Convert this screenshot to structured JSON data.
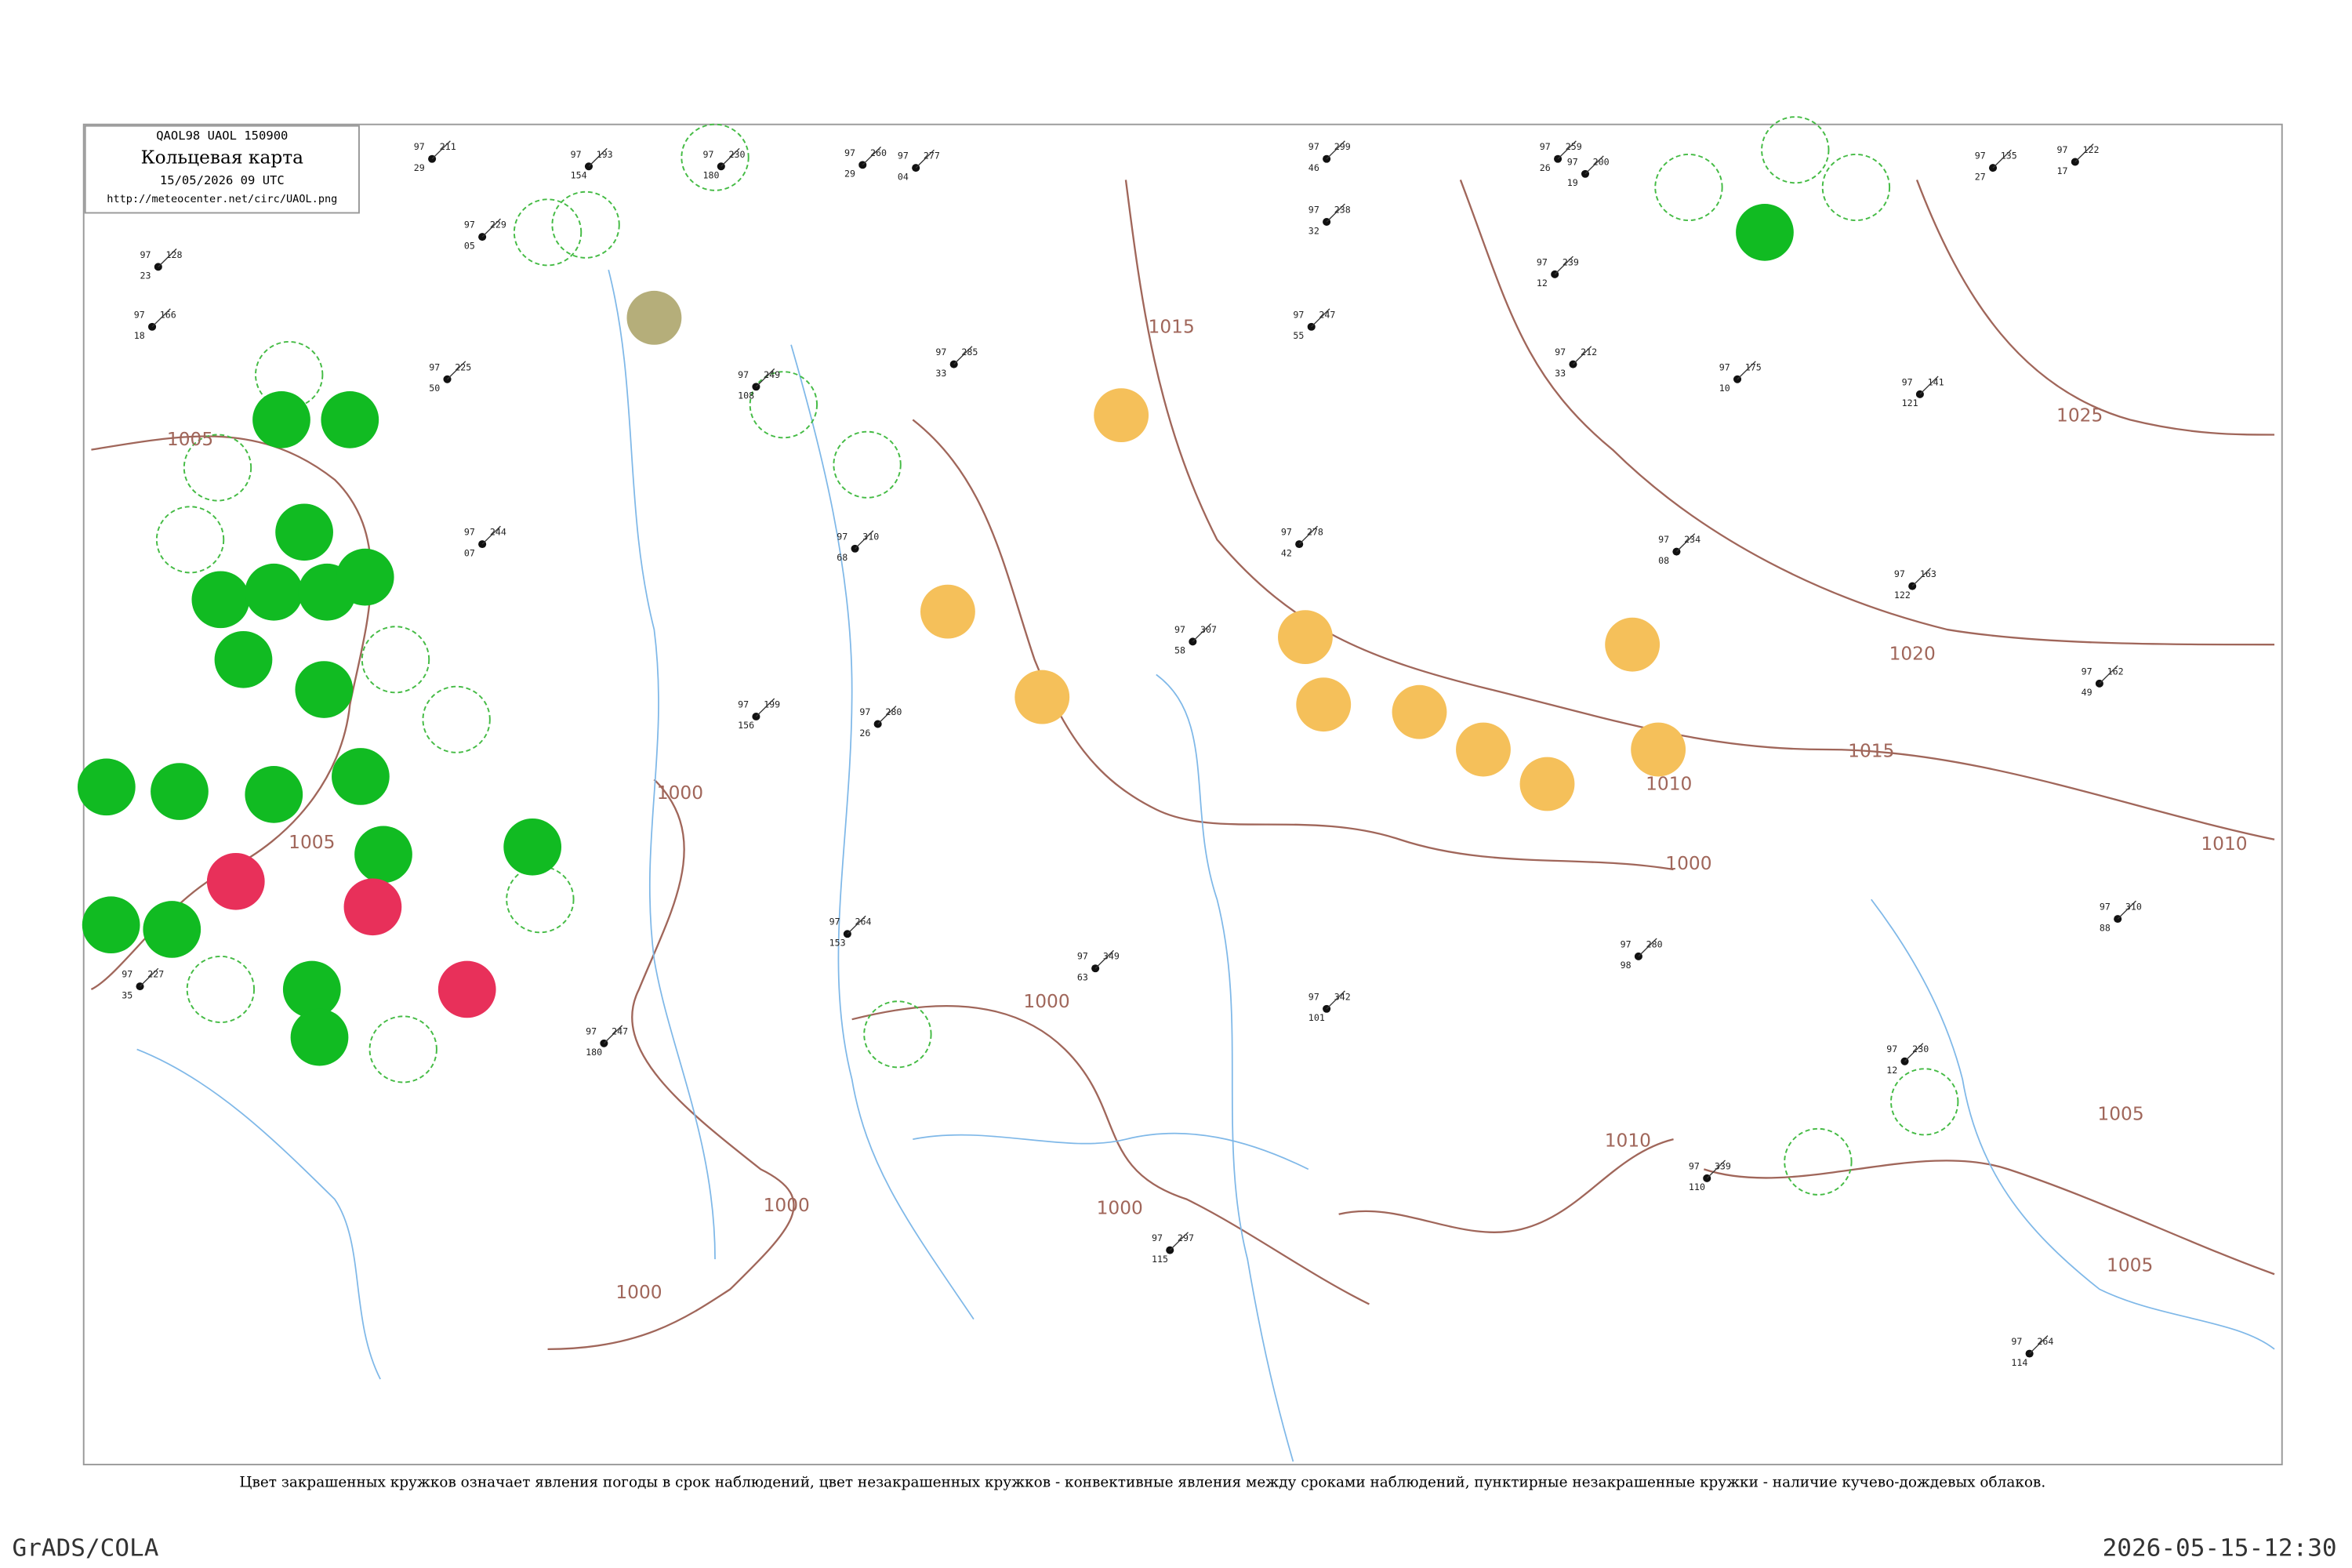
{
  "header": {
    "code": "QAOL98  UAOL  150900",
    "title": "Кольцевая карта",
    "date": "15/05/2026 09 UTC",
    "url": "http://meteocenter.net/circ/UAOL.png"
  },
  "caption": "Цвет закрашенных кружков означает явления погоды в срок наблюдений, цвет незакрашенных кружков - конвективные явления между сроками наблюдений, пунктирные незакрашенные кружки - наличие кучево-дождевых облаков.",
  "footer": {
    "left": "GrADS/COLA",
    "right": "2026-05-15-12:30"
  },
  "isobar_labels": [
    "1005",
    "1005",
    "1000",
    "1015",
    "1000",
    "1000",
    "1000",
    "1000",
    "1010",
    "1020",
    "1015",
    "1010",
    "1025",
    "1005",
    "1005",
    "1010",
    "1000"
  ],
  "stations": [
    {
      "pressure": "211",
      "temperature": "97",
      "dewpoint": "29"
    },
    {
      "pressure": "229",
      "temperature": "97",
      "dewpoint": "05"
    },
    {
      "pressure": "193",
      "temperature": "97",
      "dewpoint": "154"
    },
    {
      "pressure": "230",
      "temperature": "97",
      "dewpoint": "180"
    },
    {
      "pressure": "260",
      "temperature": "97",
      "dewpoint": "29"
    },
    {
      "pressure": "277",
      "temperature": "97",
      "dewpoint": "04"
    },
    {
      "pressure": "299",
      "temperature": "97",
      "dewpoint": "46"
    },
    {
      "pressure": "238",
      "temperature": "97",
      "dewpoint": "32"
    },
    {
      "pressure": "259",
      "temperature": "97",
      "dewpoint": "26"
    },
    {
      "pressure": "200",
      "temperature": "97",
      "dewpoint": "19"
    },
    {
      "pressure": "135",
      "temperature": "97",
      "dewpoint": "27"
    },
    {
      "pressure": "122",
      "temperature": "97",
      "dewpoint": "17"
    },
    {
      "pressure": "128",
      "temperature": "97",
      "dewpoint": "23"
    },
    {
      "pressure": "166",
      "temperature": "97",
      "dewpoint": "18"
    },
    {
      "pressure": "225",
      "temperature": "97",
      "dewpoint": "50"
    },
    {
      "pressure": "249",
      "temperature": "97",
      "dewpoint": "108"
    },
    {
      "pressure": "285",
      "temperature": "97",
      "dewpoint": "33"
    },
    {
      "pressure": "247",
      "temperature": "97",
      "dewpoint": "55"
    },
    {
      "pressure": "239",
      "temperature": "97",
      "dewpoint": "12"
    },
    {
      "pressure": "212",
      "temperature": "97",
      "dewpoint": "33"
    },
    {
      "pressure": "175",
      "temperature": "97",
      "dewpoint": "10"
    },
    {
      "pressure": "141",
      "temperature": "97",
      "dewpoint": "121"
    },
    {
      "pressure": "244",
      "temperature": "97",
      "dewpoint": "07"
    },
    {
      "pressure": "310",
      "temperature": "97",
      "dewpoint": "68"
    },
    {
      "pressure": "280",
      "temperature": "97",
      "dewpoint": "26"
    },
    {
      "pressure": "278",
      "temperature": "97",
      "dewpoint": "42"
    },
    {
      "pressure": "307",
      "temperature": "97",
      "dewpoint": "58"
    },
    {
      "pressure": "234",
      "temperature": "97",
      "dewpoint": "08"
    },
    {
      "pressure": "163",
      "temperature": "97",
      "dewpoint": "122"
    },
    {
      "pressure": "162",
      "temperature": "97",
      "dewpoint": "49"
    },
    {
      "pressure": "199",
      "temperature": "97",
      "dewpoint": "156"
    },
    {
      "pressure": "264",
      "temperature": "97",
      "dewpoint": "153"
    },
    {
      "pressure": "349",
      "temperature": "97",
      "dewpoint": "63"
    },
    {
      "pressure": "342",
      "temperature": "97",
      "dewpoint": "101"
    },
    {
      "pressure": "280",
      "temperature": "97",
      "dewpoint": "98"
    },
    {
      "pressure": "230",
      "temperature": "97",
      "dewpoint": "12"
    },
    {
      "pressure": "227",
      "temperature": "97",
      "dewpoint": "35"
    },
    {
      "pressure": "247",
      "temperature": "97",
      "dewpoint": "180"
    },
    {
      "pressure": "339",
      "temperature": "97",
      "dewpoint": "110"
    },
    {
      "pressure": "297",
      "temperature": "97",
      "dewpoint": "115"
    },
    {
      "pressure": "310",
      "temperature": "97",
      "dewpoint": "88"
    },
    {
      "pressure": "264",
      "temperature": "97",
      "dewpoint": "114"
    }
  ]
}
